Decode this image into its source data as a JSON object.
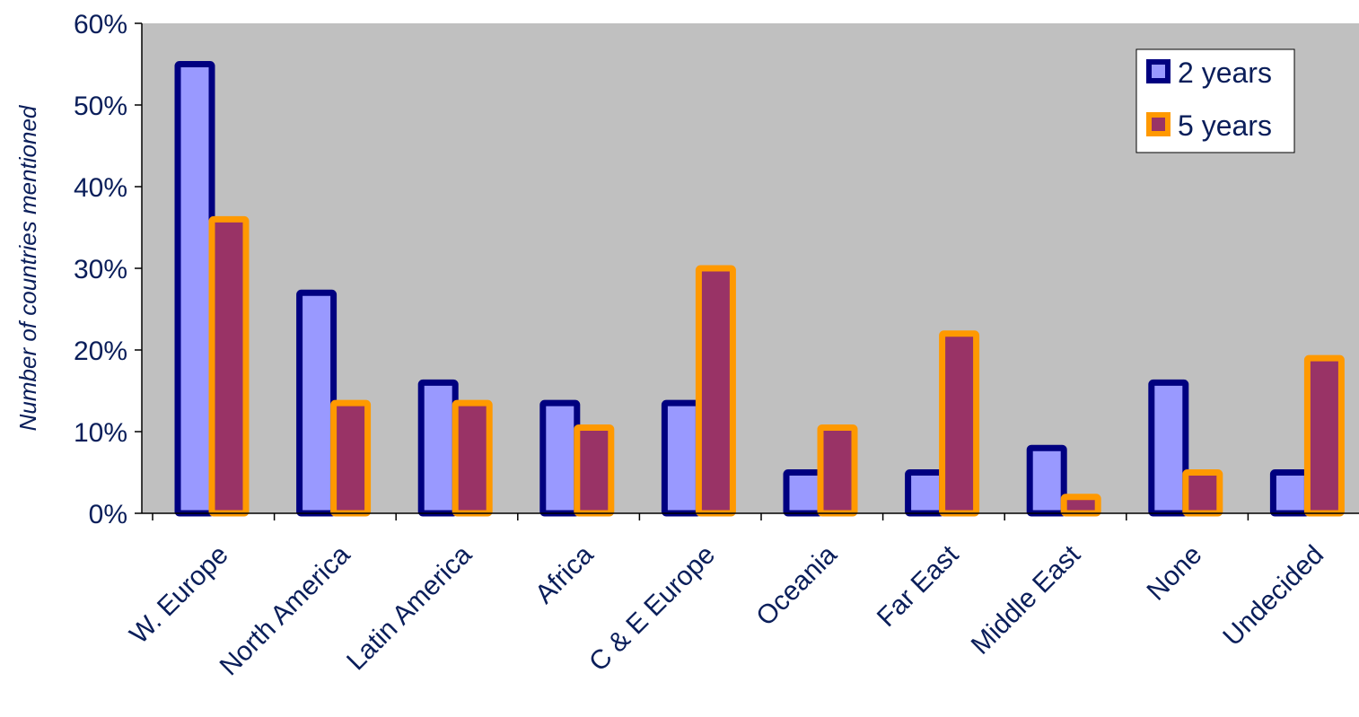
{
  "chart_data": {
    "type": "bar",
    "title": "",
    "xlabel": "",
    "ylabel": "Number of  countries mentioned",
    "ylim": [
      0,
      60
    ],
    "y_ticks": [
      "0%",
      "10%",
      "20%",
      "30%",
      "40%",
      "50%",
      "60%"
    ],
    "y_tick_values": [
      0,
      10,
      20,
      30,
      40,
      50,
      60
    ],
    "categories": [
      "W. Europe",
      "North America",
      "Latin America",
      "Africa",
      "C & E Europe",
      "Oceania",
      "Far East",
      "Middle East",
      "None",
      "Undecided"
    ],
    "series": [
      {
        "name": "2 years",
        "values": [
          55,
          27,
          16,
          13.5,
          13.5,
          5,
          5,
          8,
          16,
          5
        ]
      },
      {
        "name": "5 years",
        "values": [
          36,
          13.5,
          13.5,
          10.5,
          30,
          10.5,
          22,
          2,
          5,
          19
        ]
      }
    ],
    "grid": false,
    "legend_position": "top-right",
    "colors": {
      "plot_background": "#c0c0c0",
      "series_2y_fill": "#9999ff",
      "series_2y_border": "#000080",
      "series_5y_fill": "#993366",
      "series_5y_border": "#ff9900",
      "text": "#0a1e5a"
    }
  }
}
